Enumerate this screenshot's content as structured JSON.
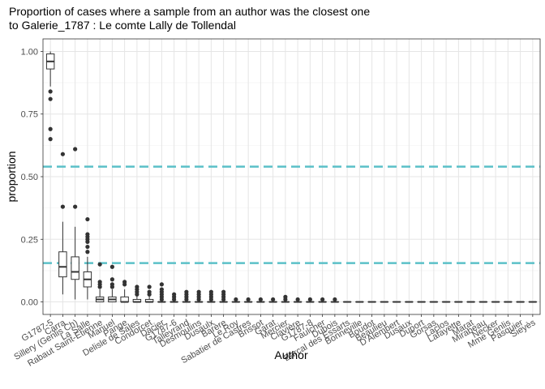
{
  "chart_data": {
    "type": "boxplot",
    "title_lines": [
      "Proportion of cases where a sample from an author was the closest one",
      "to Galerie_1787 : Le comte Lally de Tollendal"
    ],
    "xlabel": "Author",
    "ylabel": "proportion",
    "ylim": [
      -0.05,
      1.05
    ],
    "yticks": [
      0.0,
      0.25,
      0.5,
      0.75,
      1.0
    ],
    "ytick_labels": [
      "0.00",
      "0.25",
      "0.50",
      "0.75",
      "1.00"
    ],
    "grid": true,
    "reference_lines": [
      0.54,
      0.155
    ],
    "reference_color": "#5bc0c8",
    "box_color": "#333333",
    "categories": [
      "G1787-5",
      "Carra",
      "Sillery (Genlis Ch)",
      "La Salle",
      "Rabaut Saint-Etienne",
      "Manuel",
      "Pange",
      "Delisle de Sales",
      "Condorcet",
      "Dacier",
      "G1787-6",
      "Talleyrand",
      "Desmoulins",
      "Dusaulx",
      "Barère",
      "Le Roy",
      "Sabatier de Castres",
      "Brissot",
      "Garat",
      "Mercier",
      "Clavière",
      "G1787-8",
      "Faulcher",
      "Dubois",
      "Barcal des Essarts",
      "Bonneville",
      "Boudot",
      "Beaulieu",
      "D'Alembert",
      "Dusaux",
      "Duport",
      "Gorsas",
      "Laclos",
      "Lafayette",
      "Marat",
      "Mirabeau",
      "Necker",
      "Mme Genlis",
      "Pasquier",
      "Sieyès"
    ],
    "boxes": [
      {
        "q1": 0.93,
        "median": 0.96,
        "q3": 0.99,
        "lower": 0.86,
        "upper": 1.0,
        "outliers": [
          0.84,
          0.81,
          0.69,
          0.65
        ]
      },
      {
        "q1": 0.1,
        "median": 0.14,
        "q3": 0.2,
        "lower": 0.03,
        "upper": 0.32,
        "outliers": [
          0.59,
          0.38
        ]
      },
      {
        "q1": 0.09,
        "median": 0.12,
        "q3": 0.18,
        "lower": 0.01,
        "upper": 0.3,
        "outliers": [
          0.61,
          0.38
        ]
      },
      {
        "q1": 0.06,
        "median": 0.09,
        "q3": 0.12,
        "lower": 0.01,
        "upper": 0.18,
        "outliers": [
          0.33,
          0.27,
          0.26,
          0.25,
          0.24,
          0.22,
          0.2
        ]
      },
      {
        "q1": 0.0,
        "median": 0.01,
        "q3": 0.02,
        "lower": 0.0,
        "upper": 0.05,
        "outliers": [
          0.15,
          0.08,
          0.07,
          0.06
        ]
      },
      {
        "q1": 0.0,
        "median": 0.01,
        "q3": 0.02,
        "lower": 0.0,
        "upper": 0.05,
        "outliers": [
          0.14,
          0.09,
          0.07,
          0.06
        ]
      },
      {
        "q1": 0.0,
        "median": 0.0,
        "q3": 0.02,
        "lower": 0.0,
        "upper": 0.05,
        "outliers": [
          0.08,
          0.07
        ]
      },
      {
        "q1": 0.0,
        "median": 0.0,
        "q3": 0.01,
        "lower": 0.0,
        "upper": 0.025,
        "outliers": [
          0.06,
          0.05,
          0.04,
          0.03
        ]
      },
      {
        "q1": 0.0,
        "median": 0.0,
        "q3": 0.01,
        "lower": 0.0,
        "upper": 0.025,
        "outliers": [
          0.06,
          0.04,
          0.03
        ]
      },
      {
        "q1": 0.0,
        "median": 0.0,
        "q3": 0.0,
        "lower": 0.0,
        "upper": 0.0,
        "outliers": [
          0.07,
          0.05,
          0.04,
          0.03,
          0.02,
          0.01
        ]
      },
      {
        "q1": 0.0,
        "median": 0.0,
        "q3": 0.0,
        "lower": 0.0,
        "upper": 0.0,
        "outliers": [
          0.03,
          0.02,
          0.01
        ]
      },
      {
        "q1": 0.0,
        "median": 0.0,
        "q3": 0.0,
        "lower": 0.0,
        "upper": 0.0,
        "outliers": [
          0.04,
          0.03,
          0.02,
          0.01
        ]
      },
      {
        "q1": 0.0,
        "median": 0.0,
        "q3": 0.0,
        "lower": 0.0,
        "upper": 0.0,
        "outliers": [
          0.04,
          0.03,
          0.02,
          0.01
        ]
      },
      {
        "q1": 0.0,
        "median": 0.0,
        "q3": 0.0,
        "lower": 0.0,
        "upper": 0.0,
        "outliers": [
          0.04,
          0.03,
          0.02,
          0.01
        ]
      },
      {
        "q1": 0.0,
        "median": 0.0,
        "q3": 0.0,
        "lower": 0.0,
        "upper": 0.0,
        "outliers": [
          0.04,
          0.03,
          0.02,
          0.01
        ]
      },
      {
        "q1": 0.0,
        "median": 0.0,
        "q3": 0.0,
        "lower": 0.0,
        "upper": 0.0,
        "outliers": [
          0.01
        ]
      },
      {
        "q1": 0.0,
        "median": 0.0,
        "q3": 0.0,
        "lower": 0.0,
        "upper": 0.0,
        "outliers": [
          0.01
        ]
      },
      {
        "q1": 0.0,
        "median": 0.0,
        "q3": 0.0,
        "lower": 0.0,
        "upper": 0.0,
        "outliers": [
          0.01
        ]
      },
      {
        "q1": 0.0,
        "median": 0.0,
        "q3": 0.0,
        "lower": 0.0,
        "upper": 0.0,
        "outliers": [
          0.01
        ]
      },
      {
        "q1": 0.0,
        "median": 0.0,
        "q3": 0.0,
        "lower": 0.0,
        "upper": 0.0,
        "outliers": [
          0.02,
          0.01
        ]
      },
      {
        "q1": 0.0,
        "median": 0.0,
        "q3": 0.0,
        "lower": 0.0,
        "upper": 0.0,
        "outliers": [
          0.01
        ]
      },
      {
        "q1": 0.0,
        "median": 0.0,
        "q3": 0.0,
        "lower": 0.0,
        "upper": 0.0,
        "outliers": [
          0.01
        ]
      },
      {
        "q1": 0.0,
        "median": 0.0,
        "q3": 0.0,
        "lower": 0.0,
        "upper": 0.0,
        "outliers": [
          0.01
        ]
      },
      {
        "q1": 0.0,
        "median": 0.0,
        "q3": 0.0,
        "lower": 0.0,
        "upper": 0.0,
        "outliers": [
          0.01
        ]
      },
      {
        "q1": 0.0,
        "median": 0.0,
        "q3": 0.0,
        "lower": 0.0,
        "upper": 0.0,
        "outliers": []
      },
      {
        "q1": 0.0,
        "median": 0.0,
        "q3": 0.0,
        "lower": 0.0,
        "upper": 0.0,
        "outliers": []
      },
      {
        "q1": 0.0,
        "median": 0.0,
        "q3": 0.0,
        "lower": 0.0,
        "upper": 0.0,
        "outliers": []
      },
      {
        "q1": 0.0,
        "median": 0.0,
        "q3": 0.0,
        "lower": 0.0,
        "upper": 0.0,
        "outliers": []
      },
      {
        "q1": 0.0,
        "median": 0.0,
        "q3": 0.0,
        "lower": 0.0,
        "upper": 0.0,
        "outliers": []
      },
      {
        "q1": 0.0,
        "median": 0.0,
        "q3": 0.0,
        "lower": 0.0,
        "upper": 0.0,
        "outliers": []
      },
      {
        "q1": 0.0,
        "median": 0.0,
        "q3": 0.0,
        "lower": 0.0,
        "upper": 0.0,
        "outliers": []
      },
      {
        "q1": 0.0,
        "median": 0.0,
        "q3": 0.0,
        "lower": 0.0,
        "upper": 0.0,
        "outliers": []
      },
      {
        "q1": 0.0,
        "median": 0.0,
        "q3": 0.0,
        "lower": 0.0,
        "upper": 0.0,
        "outliers": []
      },
      {
        "q1": 0.0,
        "median": 0.0,
        "q3": 0.0,
        "lower": 0.0,
        "upper": 0.0,
        "outliers": []
      },
      {
        "q1": 0.0,
        "median": 0.0,
        "q3": 0.0,
        "lower": 0.0,
        "upper": 0.0,
        "outliers": []
      },
      {
        "q1": 0.0,
        "median": 0.0,
        "q3": 0.0,
        "lower": 0.0,
        "upper": 0.0,
        "outliers": []
      },
      {
        "q1": 0.0,
        "median": 0.0,
        "q3": 0.0,
        "lower": 0.0,
        "upper": 0.0,
        "outliers": []
      },
      {
        "q1": 0.0,
        "median": 0.0,
        "q3": 0.0,
        "lower": 0.0,
        "upper": 0.0,
        "outliers": []
      },
      {
        "q1": 0.0,
        "median": 0.0,
        "q3": 0.0,
        "lower": 0.0,
        "upper": 0.0,
        "outliers": []
      },
      {
        "q1": 0.0,
        "median": 0.0,
        "q3": 0.0,
        "lower": 0.0,
        "upper": 0.0,
        "outliers": []
      }
    ]
  }
}
